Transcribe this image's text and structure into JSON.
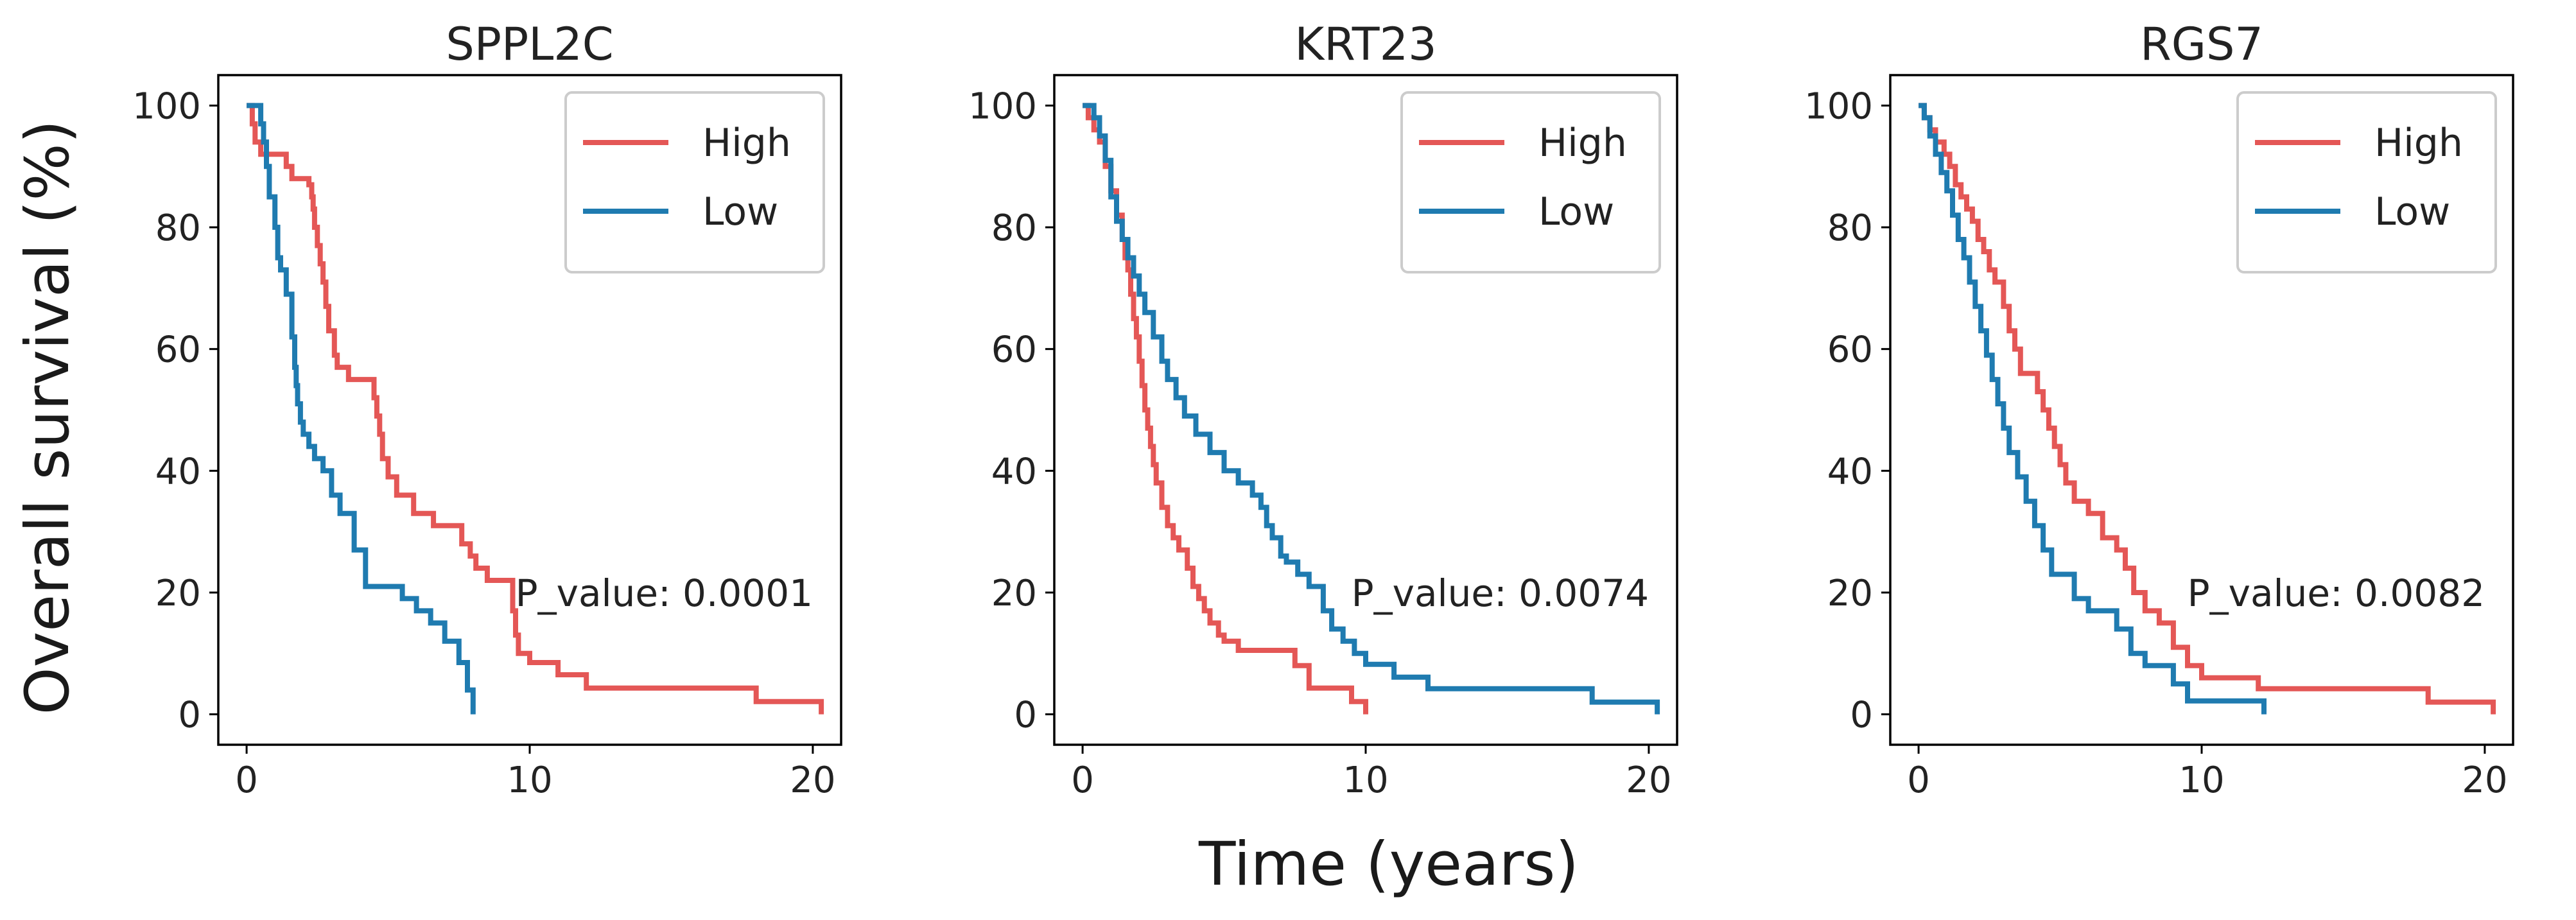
{
  "figure": {
    "ylabel": "Overall survival (%)",
    "xlabel": "Time (years)"
  },
  "chart_data": [
    {
      "type": "line",
      "title": "SPPL2C",
      "xlabel": "Time (years)",
      "ylabel": "Overall survival (%)",
      "xlim": [
        -1,
        21
      ],
      "ylim": [
        -5,
        105
      ],
      "xticks": [
        0,
        10,
        20
      ],
      "yticks": [
        0,
        20,
        40,
        60,
        80,
        100
      ],
      "legend": "top-right",
      "annotation": "P_value: 0.0001",
      "series": [
        {
          "name": "High",
          "color": "#e45756",
          "x": [
            0,
            0.2,
            0.3,
            0.5,
            0.6,
            1.4,
            1.6,
            2.2,
            2.3,
            2.35,
            2.4,
            2.5,
            2.6,
            2.7,
            2.8,
            2.9,
            3.1,
            3.2,
            3.6,
            4.5,
            4.6,
            4.7,
            4.8,
            5.0,
            5.3,
            5.9,
            6.6,
            7.6,
            7.9,
            8.1,
            8.5,
            9.4,
            9.5,
            9.6,
            10.0,
            11.0,
            12.0,
            18.0,
            20.3
          ],
          "y": [
            100,
            97,
            94,
            92,
            92,
            90,
            88,
            87,
            85,
            83,
            80,
            77,
            74,
            71,
            67,
            63,
            59,
            57,
            55,
            52,
            49,
            46,
            42,
            39,
            36,
            33,
            31,
            28,
            26,
            24,
            22,
            17,
            13,
            10,
            8.5,
            6.5,
            4.3,
            2.1,
            0
          ],
          "end_x": 20.3
        },
        {
          "name": "Low",
          "color": "#1f7bb0",
          "x": [
            0,
            0.5,
            0.6,
            0.7,
            0.8,
            1.0,
            1.1,
            1.2,
            1.4,
            1.6,
            1.7,
            1.75,
            1.8,
            1.9,
            2.0,
            2.2,
            2.4,
            2.7,
            3.0,
            3.3,
            3.8,
            4.2,
            5.5,
            6.0,
            6.5,
            7.0,
            7.5,
            7.8,
            8.0
          ],
          "y": [
            100,
            97,
            94,
            90,
            85,
            80,
            75,
            73,
            69,
            62,
            57,
            54,
            51,
            48,
            46,
            44,
            42,
            40,
            36,
            33,
            27,
            21,
            19,
            17,
            15,
            12,
            8.5,
            4,
            0
          ],
          "end_x": 8.0
        }
      ]
    },
    {
      "type": "line",
      "title": "KRT23",
      "xlabel": "Time (years)",
      "ylabel": "Overall survival (%)",
      "xlim": [
        -1,
        21
      ],
      "ylim": [
        -5,
        105
      ],
      "xticks": [
        0,
        10,
        20
      ],
      "yticks": [
        0,
        20,
        40,
        60,
        80,
        100
      ],
      "legend": "top-right",
      "annotation": "P_value: 0.0074",
      "series": [
        {
          "name": "High",
          "color": "#e45756",
          "x": [
            0,
            0.2,
            0.4,
            0.6,
            0.8,
            1.0,
            1.2,
            1.4,
            1.5,
            1.6,
            1.7,
            1.8,
            1.9,
            2.0,
            2.1,
            2.2,
            2.3,
            2.4,
            2.5,
            2.6,
            2.8,
            3.0,
            3.2,
            3.4,
            3.7,
            3.9,
            4.1,
            4.3,
            4.5,
            4.8,
            5.0,
            5.5,
            7.5,
            8.0,
            9.5,
            10.0
          ],
          "y": [
            100,
            98,
            96,
            94,
            90,
            86,
            82,
            78,
            75,
            73,
            69,
            65,
            62,
            58,
            54,
            50,
            47,
            44,
            41,
            38,
            34,
            31,
            29,
            27,
            24,
            21,
            19,
            17,
            15,
            13,
            12,
            10.5,
            8,
            4.3,
            2.1,
            0
          ],
          "end_x": 10.0
        },
        {
          "name": "Low",
          "color": "#1f7bb0",
          "x": [
            0,
            0.4,
            0.6,
            0.8,
            1.0,
            1.2,
            1.4,
            1.6,
            1.8,
            2.0,
            2.2,
            2.5,
            2.8,
            3.0,
            3.3,
            3.6,
            4.0,
            4.5,
            5.0,
            5.5,
            6.0,
            6.3,
            6.5,
            6.7,
            7.0,
            7.2,
            7.6,
            8.0,
            8.5,
            8.8,
            9.2,
            9.6,
            10.0,
            11.0,
            12.2,
            18.0,
            20.3
          ],
          "y": [
            100,
            98,
            95,
            91,
            85,
            81,
            78,
            75,
            72,
            69,
            66,
            62,
            58,
            55,
            52,
            49,
            46,
            43,
            40,
            38,
            36,
            34,
            31,
            29,
            26,
            25,
            23,
            21,
            17,
            14,
            12,
            10,
            8.2,
            6.1,
            4.2,
            2,
            0
          ],
          "end_x": 20.3
        }
      ]
    },
    {
      "type": "line",
      "title": "RGS7",
      "xlabel": "Time (years)",
      "ylabel": "Overall survival (%)",
      "xlim": [
        -1,
        21
      ],
      "ylim": [
        -5,
        105
      ],
      "xticks": [
        0,
        10,
        20
      ],
      "yticks": [
        0,
        20,
        40,
        60,
        80,
        100
      ],
      "legend": "top-right",
      "annotation": "P_value: 0.0082",
      "series": [
        {
          "name": "High",
          "color": "#e45756",
          "x": [
            0,
            0.2,
            0.4,
            0.6,
            0.9,
            1.1,
            1.3,
            1.5,
            1.7,
            1.9,
            2.1,
            2.3,
            2.5,
            2.7,
            3.0,
            3.2,
            3.4,
            3.6,
            4.2,
            4.4,
            4.6,
            4.8,
            5.0,
            5.2,
            5.5,
            6.0,
            6.5,
            7.0,
            7.3,
            7.6,
            8.0,
            8.5,
            9.0,
            9.5,
            10.0,
            12.0,
            18.0,
            20.3
          ],
          "y": [
            100,
            98,
            96,
            94,
            92,
            90,
            87,
            85,
            83,
            81,
            78,
            76,
            73,
            71,
            67,
            63,
            60,
            56,
            53,
            50,
            47,
            44,
            41,
            38,
            35,
            33,
            29,
            27,
            24,
            20,
            17,
            15,
            11,
            8,
            6,
            4.2,
            2,
            0
          ],
          "end_x": 20.3
        },
        {
          "name": "Low",
          "color": "#1f7bb0",
          "x": [
            0,
            0.2,
            0.4,
            0.6,
            0.8,
            1.0,
            1.2,
            1.4,
            1.6,
            1.8,
            2.0,
            2.2,
            2.4,
            2.6,
            2.8,
            3.0,
            3.2,
            3.5,
            3.8,
            4.1,
            4.4,
            4.7,
            5.5,
            6.0,
            7.0,
            7.5,
            8.0,
            9.0,
            9.5,
            12.2
          ],
          "y": [
            100,
            98,
            95,
            92,
            89,
            86,
            82,
            78,
            75,
            71,
            67,
            63,
            59,
            55,
            51,
            47,
            43,
            39,
            35,
            31,
            27,
            23,
            19,
            17,
            14,
            10,
            8,
            5,
            2.2,
            0
          ],
          "end_x": 12.2
        }
      ]
    }
  ]
}
